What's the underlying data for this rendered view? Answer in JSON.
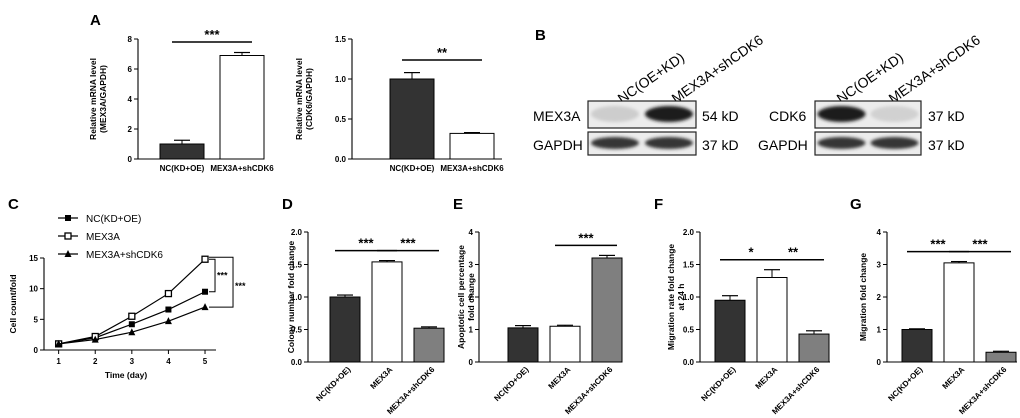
{
  "panels": {
    "A": "A",
    "B": "B",
    "C": "C",
    "D": "D",
    "E": "E",
    "F": "F",
    "G": "G"
  },
  "chart_data": [
    {
      "id": "A1",
      "type": "bar",
      "categories": [
        "NC(KD+OE)",
        "MEX3A+shCDK6"
      ],
      "values": [
        1.0,
        6.9
      ],
      "errors": [
        0.25,
        0.2
      ],
      "fills": [
        "#333333",
        "#ffffff"
      ],
      "ylabel": [
        "Relative mRNA level",
        "(MEX3A/GAPDH)"
      ],
      "ylim": [
        0,
        8
      ],
      "yticks": [
        0,
        2,
        4,
        6,
        8
      ],
      "ytick_labels": [
        "0",
        "2",
        "4",
        "6",
        "8"
      ],
      "significance": [
        {
          "from": 0,
          "to": 1,
          "label": "***"
        }
      ]
    },
    {
      "id": "A2",
      "type": "bar",
      "categories": [
        "NC(KD+OE)",
        "MEX3A+shCDK6"
      ],
      "values": [
        1.0,
        0.32
      ],
      "errors": [
        0.08,
        0.01
      ],
      "fills": [
        "#333333",
        "#ffffff"
      ],
      "ylabel": [
        "Relative mRNA level",
        "(CDK6/GAPDH)"
      ],
      "ylim": [
        0,
        1.5
      ],
      "yticks": [
        0,
        0.5,
        1.0,
        1.5
      ],
      "ytick_labels": [
        "0.0",
        "0.5",
        "1.0",
        "1.5"
      ],
      "significance": [
        {
          "from": 0,
          "to": 1,
          "label": "**"
        }
      ]
    },
    {
      "id": "C",
      "type": "line",
      "x": [
        1,
        2,
        3,
        4,
        5
      ],
      "series": [
        {
          "name": "NC(KD+OE)",
          "marker": "square-filled",
          "values": [
            1,
            2.0,
            4.2,
            6.6,
            9.5
          ]
        },
        {
          "name": "MEX3A",
          "marker": "square-open",
          "values": [
            1,
            2.2,
            5.5,
            9.2,
            14.8
          ]
        },
        {
          "name": "MEX3A+shCDK6",
          "marker": "triangle",
          "values": [
            1,
            1.7,
            2.9,
            4.7,
            7.0
          ]
        }
      ],
      "xlabel": "Time (day)",
      "ylabel": "Cell count/fold",
      "xlim": [
        0.6,
        5.3
      ],
      "ylim": [
        0,
        15
      ],
      "xticks": [
        1,
        2,
        3,
        4,
        5
      ],
      "xtick_labels": [
        "1",
        "2",
        "3",
        "4",
        "5"
      ],
      "yticks": [
        0,
        5,
        10,
        15
      ],
      "ytick_labels": [
        "0",
        "5",
        "10",
        "15"
      ],
      "significance": [
        {
          "label": "***"
        },
        {
          "label": "***"
        }
      ]
    },
    {
      "id": "D",
      "type": "bar",
      "categories": [
        "NC(KD+OE)",
        "MEX3A",
        "MEX3A+shCDK6"
      ],
      "values": [
        1.0,
        1.54,
        0.52
      ],
      "errors": [
        0.03,
        0.02,
        0.02
      ],
      "fills": [
        "#333333",
        "#ffffff",
        "#7f7f7f"
      ],
      "ylabel": [
        "Colony number fold change"
      ],
      "ylim": [
        0,
        2.0
      ],
      "yticks": [
        0,
        0.5,
        1.0,
        1.5,
        2.0
      ],
      "ytick_labels": [
        "0.0",
        "0.5",
        "1.0",
        "1.5",
        "2.0"
      ],
      "significance": [
        {
          "from": 0,
          "to": 1,
          "label": "***"
        },
        {
          "from": 1,
          "to": 2,
          "label": "***"
        }
      ]
    },
    {
      "id": "E",
      "type": "bar",
      "categories": [
        "NC(KD+OE)",
        "MEX3A",
        "MEX3A+shCDK6"
      ],
      "values": [
        1.05,
        1.1,
        3.2
      ],
      "errors": [
        0.07,
        0.03,
        0.08
      ],
      "fills": [
        "#333333",
        "#ffffff",
        "#7f7f7f"
      ],
      "ylabel": [
        "Apoptotic cell percentage",
        "fold change"
      ],
      "ylim": [
        0,
        4
      ],
      "yticks": [
        0,
        1,
        2,
        3,
        4
      ],
      "ytick_labels": [
        "0",
        "1",
        "2",
        "3",
        "4"
      ],
      "significance": [
        {
          "from": 1,
          "to": 2,
          "label": "***"
        }
      ]
    },
    {
      "id": "F",
      "type": "bar",
      "categories": [
        "NC(KD+OE)",
        "MEX3A",
        "MEX3A+shCDK6"
      ],
      "values": [
        0.95,
        1.3,
        0.43
      ],
      "errors": [
        0.07,
        0.12,
        0.05
      ],
      "fills": [
        "#333333",
        "#ffffff",
        "#7f7f7f"
      ],
      "ylabel": [
        "Migration rate fold change",
        "at 24 h"
      ],
      "ylim": [
        0,
        2.0
      ],
      "yticks": [
        0,
        0.5,
        1.0,
        1.5,
        2.0
      ],
      "ytick_labels": [
        "0.0",
        "0.5",
        "1.0",
        "1.5",
        "2.0"
      ],
      "significance": [
        {
          "from": 0,
          "to": 1,
          "label": "*"
        },
        {
          "from": 1,
          "to": 2,
          "label": "**"
        }
      ]
    },
    {
      "id": "G",
      "type": "bar",
      "categories": [
        "NC(KD+OE)",
        "MEX3A",
        "MEX3A+shCDK6"
      ],
      "values": [
        1.0,
        3.05,
        0.3
      ],
      "errors": [
        0.02,
        0.04,
        0.03
      ],
      "fills": [
        "#333333",
        "#ffffff",
        "#7f7f7f"
      ],
      "ylabel": [
        "Migration fold change"
      ],
      "ylim": [
        0,
        4
      ],
      "yticks": [
        0,
        1,
        2,
        3,
        4
      ],
      "ytick_labels": [
        "0",
        "1",
        "2",
        "3",
        "4"
      ],
      "significance": [
        {
          "from": 0,
          "to": 1,
          "label": "***"
        },
        {
          "from": 1,
          "to": 2,
          "label": "***"
        }
      ]
    }
  ],
  "blots": {
    "columns": [
      "NC(OE+KD)",
      "MEX3A+shCDK6"
    ],
    "left": {
      "rows": [
        {
          "protein": "MEX3A",
          "size": "54 kD",
          "bands": [
            0.12,
            0.95
          ]
        },
        {
          "protein": "GAPDH",
          "size": "37 kD",
          "bands": [
            0.85,
            0.85
          ]
        }
      ]
    },
    "right": {
      "rows": [
        {
          "protein": "CDK6",
          "size": "37 kD",
          "bands": [
            0.95,
            0.1
          ]
        },
        {
          "protein": "GAPDH",
          "size": "37 kD",
          "bands": [
            0.85,
            0.85
          ]
        }
      ]
    }
  }
}
